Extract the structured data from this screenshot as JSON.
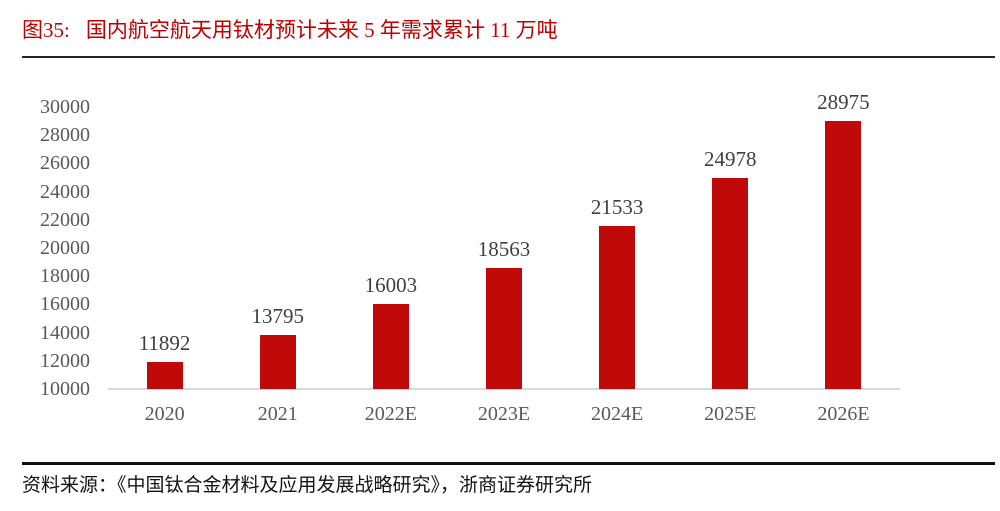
{
  "figure": {
    "label": "图35:",
    "title": "国内航空航天用钛材预计未来 5 年需求累计 11 万吨"
  },
  "source_line": "资料来源：《中国钛合金材料及应用发展战略研究》，浙商证券研究所",
  "colors": {
    "bar": "#c00a0a",
    "title": "#c00000",
    "axis_label": "#595959",
    "data_label": "#3f3f3f",
    "baseline": "#d9d9d9",
    "top_rule": "#262626",
    "bottom_rule": "#111111"
  },
  "chart_data": {
    "type": "bar",
    "title": "国内航空航天用钛材预计未来 5 年需求累计 11 万吨",
    "categories": [
      "2020",
      "2021",
      "2022E",
      "2023E",
      "2024E",
      "2025E",
      "2026E"
    ],
    "values": [
      11892,
      13795,
      16003,
      18563,
      21533,
      24978,
      28975
    ],
    "data_labels": [
      "11892",
      "13795",
      "16003",
      "18563",
      "21533",
      "24978",
      "28975"
    ],
    "xlabel": "",
    "ylabel": "",
    "ylim": [
      10000,
      30000
    ],
    "y_tick_step": 2000,
    "y_ticks": [
      10000,
      12000,
      14000,
      16000,
      18000,
      20000,
      22000,
      24000,
      26000,
      28000,
      30000
    ],
    "grid": false,
    "legend": null,
    "bar_color": "#c00a0a"
  }
}
